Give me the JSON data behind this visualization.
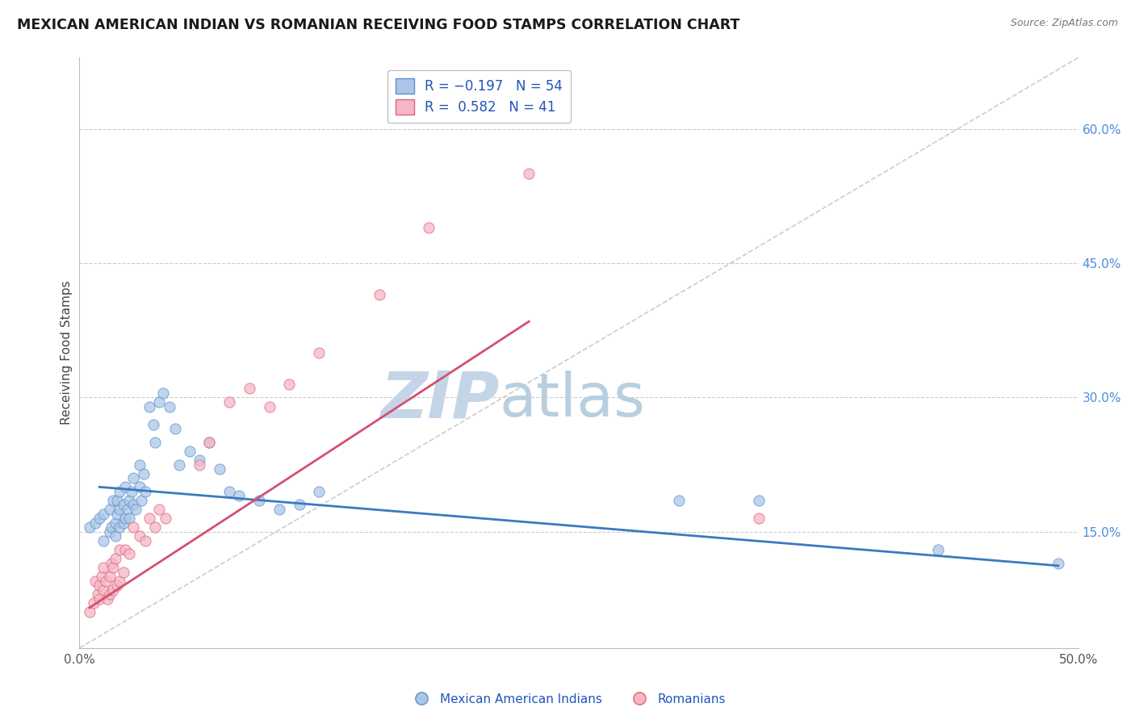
{
  "title": "MEXICAN AMERICAN INDIAN VS ROMANIAN RECEIVING FOOD STAMPS CORRELATION CHART",
  "source_text": "Source: ZipAtlas.com",
  "ylabel": "Receiving Food Stamps",
  "xlim": [
    0.0,
    0.5
  ],
  "ylim": [
    0.02,
    0.68
  ],
  "y_ticks_right": [
    0.15,
    0.3,
    0.45,
    0.6
  ],
  "y_tick_labels_right": [
    "15.0%",
    "30.0%",
    "45.0%",
    "60.0%"
  ],
  "color_blue_fill": "#adc6e8",
  "color_blue_edge": "#5b8fc9",
  "color_pink_fill": "#f5b8c4",
  "color_pink_edge": "#e06080",
  "color_line_blue": "#3a7abf",
  "color_line_pink": "#d45070",
  "watermark_zip_color": "#c5d5e8",
  "watermark_atlas_color": "#b8cfe0",
  "series1_label": "Mexican American Indians",
  "series2_label": "Romanians",
  "blue_line_x": [
    0.01,
    0.49
  ],
  "blue_line_y": [
    0.2,
    0.112
  ],
  "pink_line_x": [
    0.005,
    0.225
  ],
  "pink_line_y": [
    0.065,
    0.385
  ],
  "diag_line": [
    [
      0.0,
      0.5
    ],
    [
      0.02,
      0.68
    ]
  ],
  "blue_x": [
    0.005,
    0.008,
    0.01,
    0.012,
    0.012,
    0.015,
    0.015,
    0.016,
    0.017,
    0.018,
    0.018,
    0.019,
    0.019,
    0.02,
    0.02,
    0.02,
    0.022,
    0.022,
    0.023,
    0.023,
    0.024,
    0.025,
    0.025,
    0.026,
    0.027,
    0.027,
    0.028,
    0.03,
    0.03,
    0.031,
    0.032,
    0.033,
    0.035,
    0.037,
    0.038,
    0.04,
    0.042,
    0.045,
    0.048,
    0.05,
    0.055,
    0.06,
    0.065,
    0.07,
    0.075,
    0.08,
    0.09,
    0.1,
    0.11,
    0.12,
    0.3,
    0.34,
    0.43,
    0.49
  ],
  "blue_y": [
    0.155,
    0.16,
    0.165,
    0.14,
    0.17,
    0.15,
    0.175,
    0.155,
    0.185,
    0.145,
    0.16,
    0.17,
    0.185,
    0.155,
    0.175,
    0.195,
    0.16,
    0.18,
    0.2,
    0.165,
    0.175,
    0.165,
    0.185,
    0.195,
    0.18,
    0.21,
    0.175,
    0.2,
    0.225,
    0.185,
    0.215,
    0.195,
    0.29,
    0.27,
    0.25,
    0.295,
    0.305,
    0.29,
    0.265,
    0.225,
    0.24,
    0.23,
    0.25,
    0.22,
    0.195,
    0.19,
    0.185,
    0.175,
    0.18,
    0.195,
    0.185,
    0.185,
    0.13,
    0.115
  ],
  "pink_x": [
    0.005,
    0.007,
    0.008,
    0.009,
    0.01,
    0.01,
    0.011,
    0.012,
    0.012,
    0.013,
    0.014,
    0.015,
    0.015,
    0.016,
    0.017,
    0.017,
    0.018,
    0.019,
    0.02,
    0.02,
    0.022,
    0.023,
    0.025,
    0.027,
    0.03,
    0.033,
    0.035,
    0.038,
    0.04,
    0.043,
    0.06,
    0.065,
    0.075,
    0.085,
    0.095,
    0.105,
    0.12,
    0.15,
    0.175,
    0.225,
    0.34
  ],
  "pink_y": [
    0.06,
    0.07,
    0.095,
    0.08,
    0.075,
    0.09,
    0.1,
    0.085,
    0.11,
    0.095,
    0.075,
    0.08,
    0.1,
    0.115,
    0.085,
    0.11,
    0.12,
    0.09,
    0.095,
    0.13,
    0.105,
    0.13,
    0.125,
    0.155,
    0.145,
    0.14,
    0.165,
    0.155,
    0.175,
    0.165,
    0.225,
    0.25,
    0.295,
    0.31,
    0.29,
    0.315,
    0.35,
    0.415,
    0.49,
    0.55,
    0.165
  ]
}
